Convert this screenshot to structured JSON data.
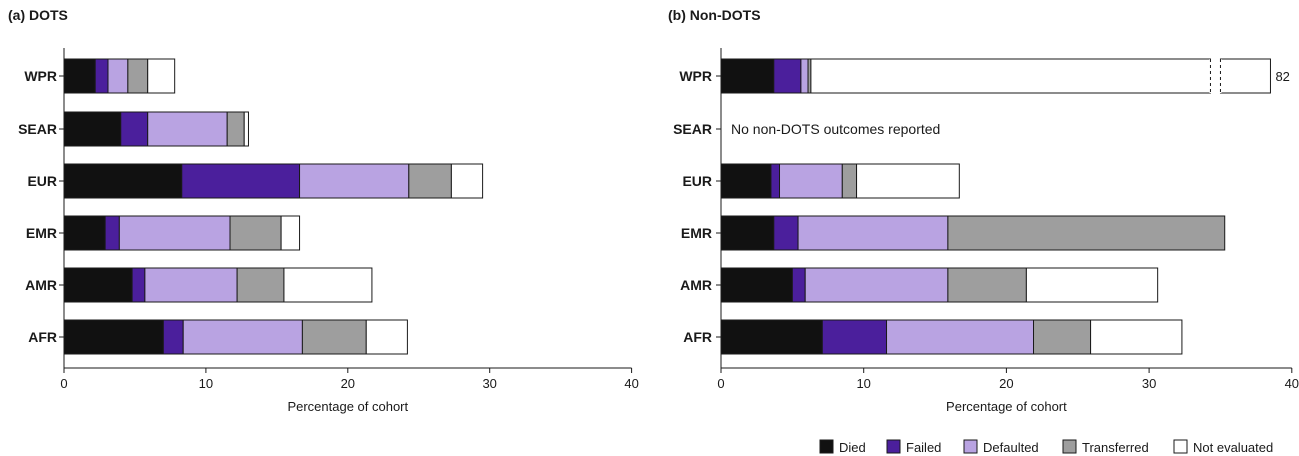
{
  "chart_data": [
    {
      "type": "bar",
      "orientation": "horizontal",
      "stacked": true,
      "title": "(a) DOTS",
      "xlabel": "Percentage of cohort",
      "xlim": [
        0,
        40
      ],
      "xticks": [
        0,
        10,
        20,
        30,
        40
      ],
      "categories": [
        "WPR",
        "SEAR",
        "EUR",
        "EMR",
        "AMR",
        "AFR"
      ],
      "series": [
        {
          "name": "Died",
          "values": [
            2.2,
            4.0,
            8.3,
            2.9,
            4.8,
            7.0
          ]
        },
        {
          "name": "Failed",
          "values": [
            0.9,
            1.9,
            8.3,
            1.0,
            0.9,
            1.4
          ]
        },
        {
          "name": "Defaulted",
          "values": [
            1.4,
            5.6,
            7.7,
            7.8,
            6.5,
            8.4
          ]
        },
        {
          "name": "Transferred",
          "values": [
            1.4,
            1.2,
            3.0,
            3.6,
            3.3,
            4.5
          ]
        },
        {
          "name": "Not evaluated",
          "values": [
            1.9,
            0.3,
            2.2,
            1.3,
            6.2,
            2.9
          ]
        }
      ]
    },
    {
      "type": "bar",
      "orientation": "horizontal",
      "stacked": true,
      "title": "(b) Non-DOTS",
      "xlabel": "Percentage of cohort",
      "xlim": [
        0,
        40
      ],
      "xticks": [
        0,
        10,
        20,
        30,
        40
      ],
      "categories": [
        "WPR",
        "SEAR",
        "EUR",
        "EMR",
        "AMR",
        "AFR"
      ],
      "series": [
        {
          "name": "Died",
          "values": [
            3.7,
            null,
            3.5,
            3.7,
            5.0,
            7.1
          ]
        },
        {
          "name": "Failed",
          "values": [
            1.9,
            null,
            0.6,
            1.7,
            0.9,
            4.5
          ]
        },
        {
          "name": "Defaulted",
          "values": [
            0.5,
            null,
            4.4,
            10.5,
            10.0,
            10.3
          ]
        },
        {
          "name": "Transferred",
          "values": [
            0.2,
            null,
            1.0,
            19.4,
            5.5,
            4.0
          ]
        },
        {
          "name": "Not evaluated",
          "values": [
            75.7,
            null,
            7.2,
            0.0,
            9.2,
            6.4
          ]
        }
      ],
      "axis_break": {
        "after": 34.3,
        "bar": "WPR",
        "label": "82"
      },
      "annotations": [
        {
          "category": "SEAR",
          "text": "No non-DOTS outcomes reported"
        }
      ]
    }
  ],
  "legend": {
    "placement": "bottom-right",
    "items": [
      {
        "name": "Died",
        "color": "#111111"
      },
      {
        "name": "Failed",
        "color": "#4b1f9c"
      },
      {
        "name": "Defaulted",
        "color": "#b9a3e2"
      },
      {
        "name": "Transferred",
        "color": "#9e9e9e"
      },
      {
        "name": "Not evaluated",
        "color": "#ffffff"
      }
    ]
  }
}
